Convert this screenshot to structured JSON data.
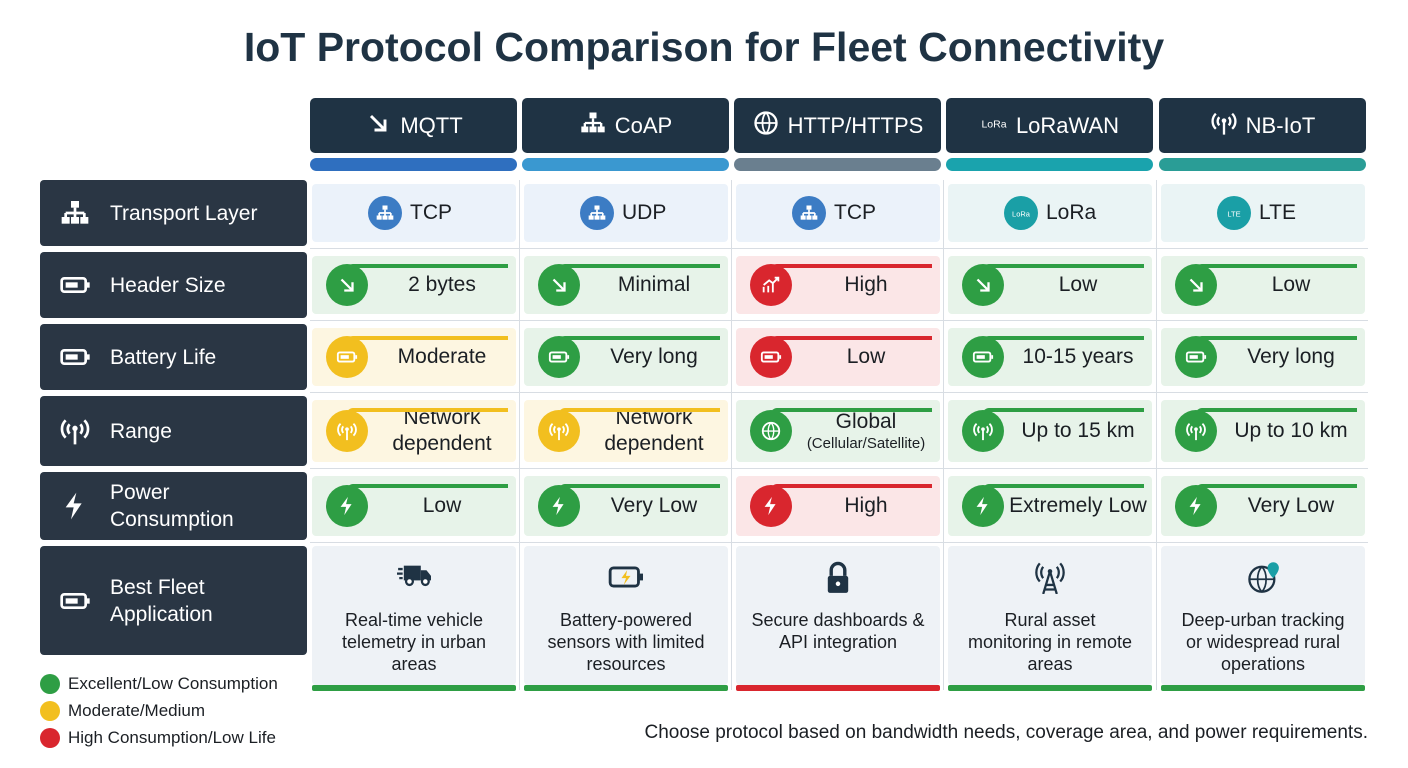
{
  "title": "IoT Protocol Comparison for Fleet Connectivity",
  "colors": {
    "green": "#2e9e44",
    "yellow": "#f2bf1f",
    "red": "#d9262e",
    "blue": "#3c7cc4",
    "teal": "#1a9fa6"
  },
  "protocols": [
    {
      "name": "MQTT",
      "icon": "envelope-arrows-icon",
      "stripe": "#2f6fbf"
    },
    {
      "name": "CoAP",
      "icon": "network-node-icon",
      "stripe": "#3a98d0"
    },
    {
      "name": "HTTP/HTTPS",
      "icon": "globe-lock-icon",
      "stripe": "#6a7f8f"
    },
    {
      "name": "LoRaWAN",
      "icon": "lora-signal-icon",
      "stripe": "#1aa3ad"
    },
    {
      "name": "NB-IoT",
      "icon": "antenna-icon",
      "stripe": "#2a9d96"
    }
  ],
  "rows": [
    {
      "label": "Transport Layer",
      "icon": "hierarchy-icon",
      "cells": [
        {
          "text": "TCP",
          "status": "blue",
          "icon": "hierarchy-icon"
        },
        {
          "text": "UDP",
          "status": "blue",
          "icon": "hierarchy-icon"
        },
        {
          "text": "TCP",
          "status": "blue",
          "icon": "hierarchy-icon"
        },
        {
          "text": "LoRa",
          "status": "teal",
          "icon": "lora-icon"
        },
        {
          "text": "LTE",
          "status": "teal",
          "icon": "lte-icon"
        }
      ]
    },
    {
      "label": "Header Size",
      "icon": "browser-window-icon",
      "cells": [
        {
          "text": "2 bytes",
          "status": "green",
          "icon": "arrow-down-right-icon"
        },
        {
          "text": "Minimal",
          "status": "green",
          "icon": "arrow-down-right-icon"
        },
        {
          "text": "High",
          "status": "red",
          "icon": "chart-up-icon"
        },
        {
          "text": "Low",
          "status": "green",
          "icon": "arrow-down-right-icon"
        },
        {
          "text": "Low",
          "status": "green",
          "icon": "arrow-down-right-icon"
        }
      ]
    },
    {
      "label": "Battery Life",
      "icon": "battery-icon",
      "cells": [
        {
          "text": "Moderate",
          "status": "yellow",
          "icon": "battery-icon"
        },
        {
          "text": "Very long",
          "status": "green",
          "icon": "battery-icon"
        },
        {
          "text": "Low",
          "status": "red",
          "icon": "battery-icon"
        },
        {
          "text": "10-15 years",
          "status": "green",
          "icon": "battery-icon"
        },
        {
          "text": "Very long",
          "status": "green",
          "icon": "battery-icon"
        }
      ]
    },
    {
      "label": "Range",
      "icon": "antenna-icon",
      "cells": [
        {
          "text": "Network dependent",
          "status": "yellow",
          "icon": "antenna-icon"
        },
        {
          "text": "Network dependent",
          "status": "yellow",
          "icon": "antenna-icon"
        },
        {
          "text": "Global",
          "sub": "(Cellular/Satellite)",
          "status": "green",
          "icon": "globe-icon"
        },
        {
          "text": "Up to 15 km",
          "status": "green",
          "icon": "antenna-icon"
        },
        {
          "text": "Up to 10 km",
          "status": "green",
          "icon": "antenna-icon"
        }
      ]
    },
    {
      "label": "Power Consumption",
      "icon": "lightning-icon",
      "cells": [
        {
          "text": "Low",
          "status": "green",
          "icon": "lightning-icon"
        },
        {
          "text": "Very Low",
          "status": "green",
          "icon": "lightning-icon"
        },
        {
          "text": "High",
          "status": "red",
          "icon": "lightning-icon"
        },
        {
          "text": "Extremely Low",
          "status": "green",
          "icon": "lightning-icon"
        },
        {
          "text": "Very Low",
          "status": "green",
          "icon": "lightning-icon"
        }
      ]
    },
    {
      "label": "Best Fleet Application",
      "icon": "truck-location-icon",
      "cells": [
        {
          "text": "Real-time vehicle telemetry in urban areas",
          "status": "green",
          "icon": "fast-truck-icon"
        },
        {
          "text": "Battery-powered sensors with limited resources",
          "status": "green",
          "icon": "battery-charging-icon"
        },
        {
          "text": "Secure dashboards & API integration",
          "status": "red",
          "icon": "lock-icon"
        },
        {
          "text": "Rural asset monitoring in remote areas",
          "status": "green",
          "icon": "antenna-tower-icon"
        },
        {
          "text": "Deep-urban tracking or widespread rural operations",
          "status": "green",
          "icon": "globe-pin-icon"
        }
      ]
    }
  ],
  "legend": [
    {
      "label": "Excellent/Low Consumption",
      "status": "green"
    },
    {
      "label": "Moderate/Medium",
      "status": "yellow"
    },
    {
      "label": "High Consumption/Low Life",
      "status": "red"
    }
  ],
  "footer": "Choose protocol based on bandwidth needs, coverage area, and power requirements."
}
